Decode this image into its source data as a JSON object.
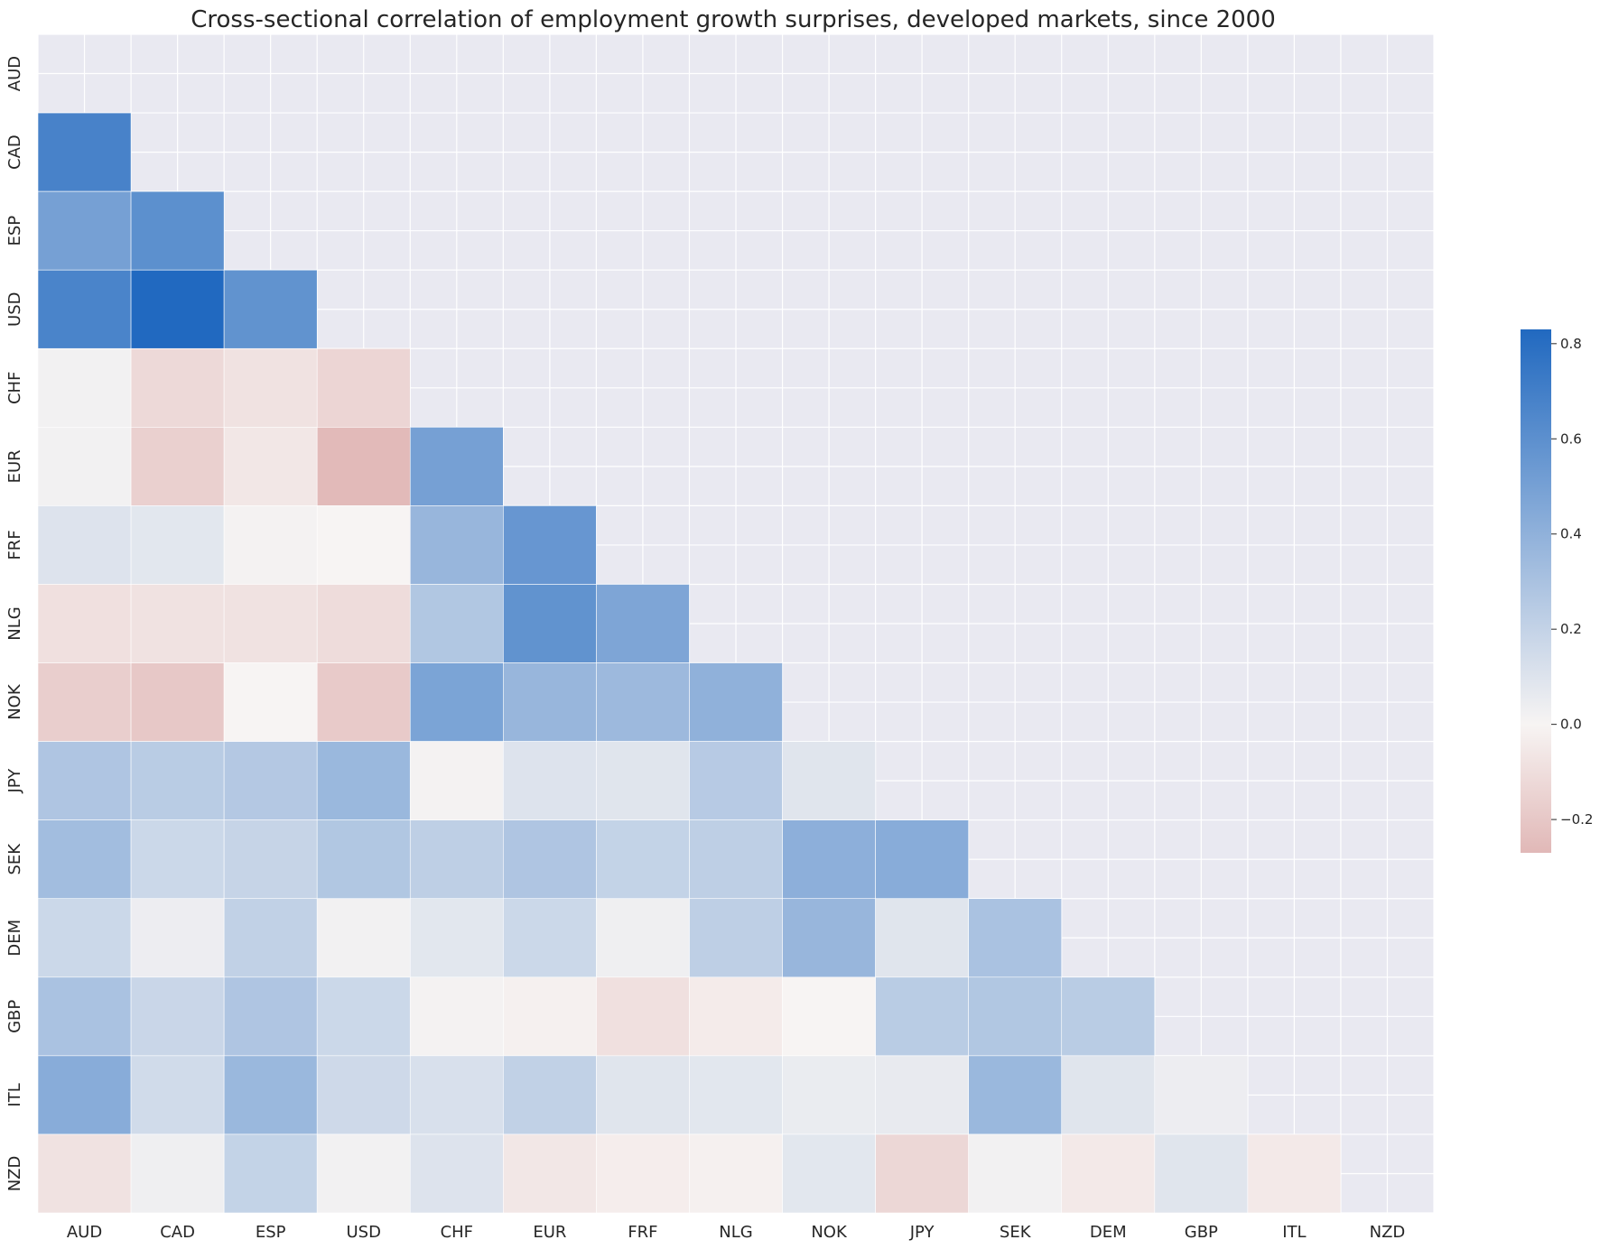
{
  "chart_data": {
    "type": "heatmap",
    "title": "Cross-sectional correlation of employment growth surprises, developed markets, since 2000",
    "xlabel": "",
    "ylabel": "",
    "labels": [
      "AUD",
      "CAD",
      "ESP",
      "USD",
      "CHF",
      "EUR",
      "FRF",
      "NLG",
      "NOK",
      "JPY",
      "SEK",
      "DEM",
      "GBP",
      "ITL",
      "NZD"
    ],
    "masked": "upper triangle including diagonal",
    "matrix": [
      [
        null,
        null,
        null,
        null,
        null,
        null,
        null,
        null,
        null,
        null,
        null,
        null,
        null,
        null,
        null
      ],
      [
        0.68,
        null,
        null,
        null,
        null,
        null,
        null,
        null,
        null,
        null,
        null,
        null,
        null,
        null,
        null
      ],
      [
        0.5,
        0.6,
        null,
        null,
        null,
        null,
        null,
        null,
        null,
        null,
        null,
        null,
        null,
        null,
        null
      ],
      [
        0.67,
        0.83,
        0.58,
        null,
        null,
        null,
        null,
        null,
        null,
        null,
        null,
        null,
        null,
        null,
        null
      ],
      [
        0.02,
        -0.12,
        -0.08,
        -0.14,
        null,
        null,
        null,
        null,
        null,
        null,
        null,
        null,
        null,
        null,
        null
      ],
      [
        0.02,
        -0.16,
        -0.06,
        -0.26,
        0.5,
        null,
        null,
        null,
        null,
        null,
        null,
        null,
        null,
        null,
        null
      ],
      [
        0.1,
        0.08,
        0.01,
        0.0,
        0.37,
        0.56,
        null,
        null,
        null,
        null,
        null,
        null,
        null,
        null,
        null
      ],
      [
        -0.09,
        -0.08,
        -0.08,
        -0.11,
        0.27,
        0.58,
        0.47,
        null,
        null,
        null,
        null,
        null,
        null,
        null,
        null
      ],
      [
        -0.17,
        -0.2,
        0.0,
        -0.19,
        0.48,
        0.37,
        0.35,
        0.4,
        null,
        null,
        null,
        null,
        null,
        null,
        null
      ],
      [
        0.28,
        0.24,
        0.26,
        0.36,
        0.01,
        0.1,
        0.09,
        0.25,
        0.09,
        null,
        null,
        null,
        null,
        null,
        null
      ],
      [
        0.33,
        0.17,
        0.19,
        0.27,
        0.22,
        0.28,
        0.2,
        0.22,
        0.41,
        0.43,
        null,
        null,
        null,
        null,
        null
      ],
      [
        0.17,
        0.04,
        0.21,
        0.02,
        0.08,
        0.17,
        0.03,
        0.22,
        0.37,
        0.09,
        0.3,
        null,
        null,
        null,
        null
      ],
      [
        0.3,
        0.18,
        0.28,
        0.17,
        0.01,
        -0.02,
        -0.09,
        -0.04,
        0.0,
        0.24,
        0.27,
        0.24,
        null,
        null,
        null
      ],
      [
        0.43,
        0.15,
        0.36,
        0.16,
        0.12,
        0.21,
        0.09,
        0.08,
        0.05,
        0.06,
        0.36,
        0.09,
        0.04,
        null,
        null
      ],
      [
        -0.08,
        0.03,
        0.2,
        0.02,
        0.1,
        -0.06,
        -0.03,
        -0.02,
        0.08,
        -0.13,
        0.02,
        -0.05,
        0.09,
        -0.05,
        null
      ]
    ],
    "vmin": -0.27,
    "vmax": 0.83,
    "colorbar_ticks": [
      "0.8",
      "0.6",
      "0.4",
      "0.2",
      "0.0",
      "−0.2"
    ],
    "colorbar_tick_values": [
      0.8,
      0.6,
      0.4,
      0.2,
      0.0,
      -0.2
    ],
    "colors": {
      "negative_end": "#e1b8b7",
      "center": "#f7f4f3",
      "positive_end": "#2169c0",
      "axes_background": "#e9e9f1",
      "grid": "#ffffff"
    },
    "grid": true
  }
}
